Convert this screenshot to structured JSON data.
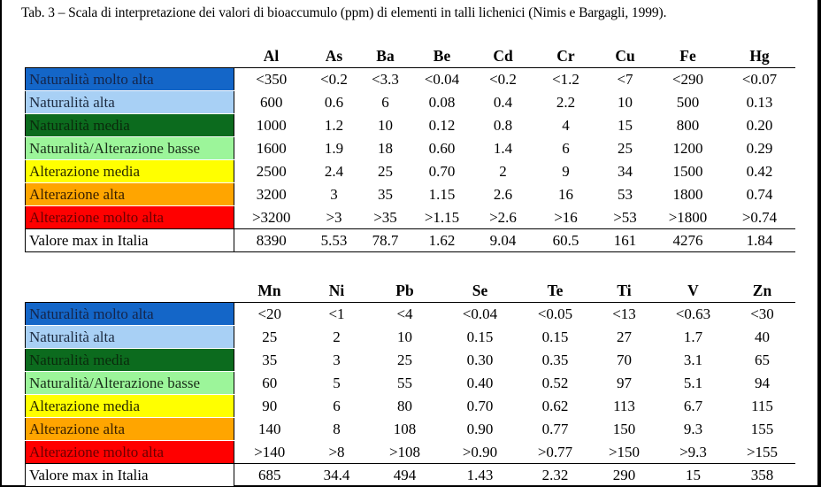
{
  "caption": "Tab. 3 – Scala di interpretazione dei valori di bioaccumulo (ppm) di elementi in talli lichenici (Nimis e Bargagli, 1999).",
  "row_labels": [
    {
      "label": "Naturalità molto alta",
      "color": "#1466c8",
      "text_color": "#14254a"
    },
    {
      "label": "Naturalità alta",
      "color": "#a8d0f5",
      "text_color": "#1d2b40"
    },
    {
      "label": "Naturalità media",
      "color": "#0c6b1e",
      "text_color": "#0a2a0c"
    },
    {
      "label": "Naturalità/Alterazione basse",
      "color": "#9cf59a",
      "text_color": "#1a2f1a"
    },
    {
      "label": "Alterazione media",
      "color": "#ffff00",
      "text_color": "#2a2a00"
    },
    {
      "label": "Alterazione alta",
      "color": "#ffa500",
      "text_color": "#3a2000"
    },
    {
      "label": "Alterazione molto alta",
      "color": "#ff0000",
      "text_color": "#6a0000"
    },
    {
      "label": "Valore max in Italia",
      "color": "#ffffff",
      "text_color": "#000000"
    }
  ],
  "table1": {
    "headers": [
      "Al",
      "As",
      "Ba",
      "Be",
      "Cd",
      "Cr",
      "Cu",
      "Fe",
      "Hg"
    ],
    "rows": [
      [
        "<350",
        "<0.2",
        "<3.3",
        "<0.04",
        "<0.2",
        "<1.2",
        "<7",
        "<290",
        "<0.07"
      ],
      [
        "600",
        "0.6",
        "6",
        "0.08",
        "0.4",
        "2.2",
        "10",
        "500",
        "0.13"
      ],
      [
        "1000",
        "1.2",
        "10",
        "0.12",
        "0.8",
        "4",
        "15",
        "800",
        "0.20"
      ],
      [
        "1600",
        "1.9",
        "18",
        "0.60",
        "1.4",
        "6",
        "25",
        "1200",
        "0.29"
      ],
      [
        "2500",
        "2.4",
        "25",
        "0.70",
        "2",
        "9",
        "34",
        "1500",
        "0.42"
      ],
      [
        "3200",
        "3",
        "35",
        "1.15",
        "2.6",
        "16",
        "53",
        "1800",
        "0.74"
      ],
      [
        ">3200",
        ">3",
        ">35",
        ">1.15",
        ">2.6",
        ">16",
        ">53",
        ">1800",
        ">0.74"
      ],
      [
        "8390",
        "5.53",
        "78.7",
        "1.62",
        "9.04",
        "60.5",
        "161",
        "4276",
        "1.84"
      ]
    ]
  },
  "table2": {
    "headers": [
      "Mn",
      "Ni",
      "Pb",
      "Se",
      "Te",
      "Ti",
      "V",
      "Zn"
    ],
    "rows": [
      [
        "<20",
        "<1",
        "<4",
        "<0.04",
        "<0.05",
        "<13",
        "<0.63",
        "<30"
      ],
      [
        "25",
        "2",
        "10",
        "0.15",
        "0.15",
        "27",
        "1.7",
        "40"
      ],
      [
        "35",
        "3",
        "25",
        "0.30",
        "0.35",
        "70",
        "3.1",
        "65"
      ],
      [
        "60",
        "5",
        "55",
        "0.40",
        "0.52",
        "97",
        "5.1",
        "94"
      ],
      [
        "90",
        "6",
        "80",
        "0.70",
        "0.62",
        "113",
        "6.7",
        "115"
      ],
      [
        "140",
        "8",
        "108",
        "0.90",
        "0.77",
        "150",
        "9.3",
        "155"
      ],
      [
        ">140",
        ">8",
        ">108",
        ">0.90",
        ">0.77",
        ">150",
        ">9.3",
        ">155"
      ],
      [
        "685",
        "34.4",
        "494",
        "1.43",
        "2.32",
        "290",
        "15",
        "358"
      ]
    ]
  }
}
